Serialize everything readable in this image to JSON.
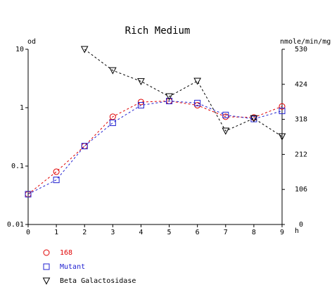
{
  "chart_data": {
    "type": "line",
    "title": "Rich Medium",
    "xlabel": "h",
    "ylabel_left": "od",
    "ylabel_right": "nmole/min/mg",
    "x": [
      0,
      1,
      2,
      3,
      4,
      5,
      6,
      7,
      8,
      9
    ],
    "x_ticks": [
      "0",
      "1",
      "2",
      "3",
      "4",
      "5",
      "6",
      "7",
      "8",
      "9"
    ],
    "xlim": [
      0,
      9
    ],
    "ylim_left": [
      0.01,
      10
    ],
    "yscale_left": "log",
    "y_ticks_left": [
      "10",
      "1",
      "0.1",
      "0.01"
    ],
    "ylim_right": [
      0,
      530
    ],
    "y_ticks_right": [
      "530",
      "424",
      "318",
      "212",
      "106",
      "0"
    ],
    "grid": false,
    "legend_position": "bottom-left",
    "series": [
      {
        "name": "168",
        "axis": "left",
        "color": "#e00000",
        "marker": "circle",
        "x": [
          0,
          1,
          2,
          3,
          4,
          5,
          6,
          7,
          8,
          9
        ],
        "values": [
          0.033,
          0.08,
          0.22,
          0.7,
          1.25,
          1.3,
          1.1,
          0.7,
          0.68,
          1.05
        ]
      },
      {
        "name": "Mutant",
        "axis": "left",
        "color": "#2020d0",
        "marker": "square",
        "x": [
          0,
          1,
          2,
          3,
          4,
          5,
          6,
          7,
          8,
          9
        ],
        "values": [
          0.033,
          0.058,
          0.22,
          0.55,
          1.1,
          1.3,
          1.2,
          0.75,
          0.64,
          0.88
        ]
      },
      {
        "name": "Beta Galactosidase",
        "axis": "right",
        "color": "#000000",
        "marker": "triangle-down",
        "x": [
          2,
          3,
          4,
          5,
          6,
          7,
          8,
          9
        ],
        "values": [
          530,
          466,
          433,
          387,
          434,
          283,
          321,
          266
        ]
      }
    ]
  }
}
